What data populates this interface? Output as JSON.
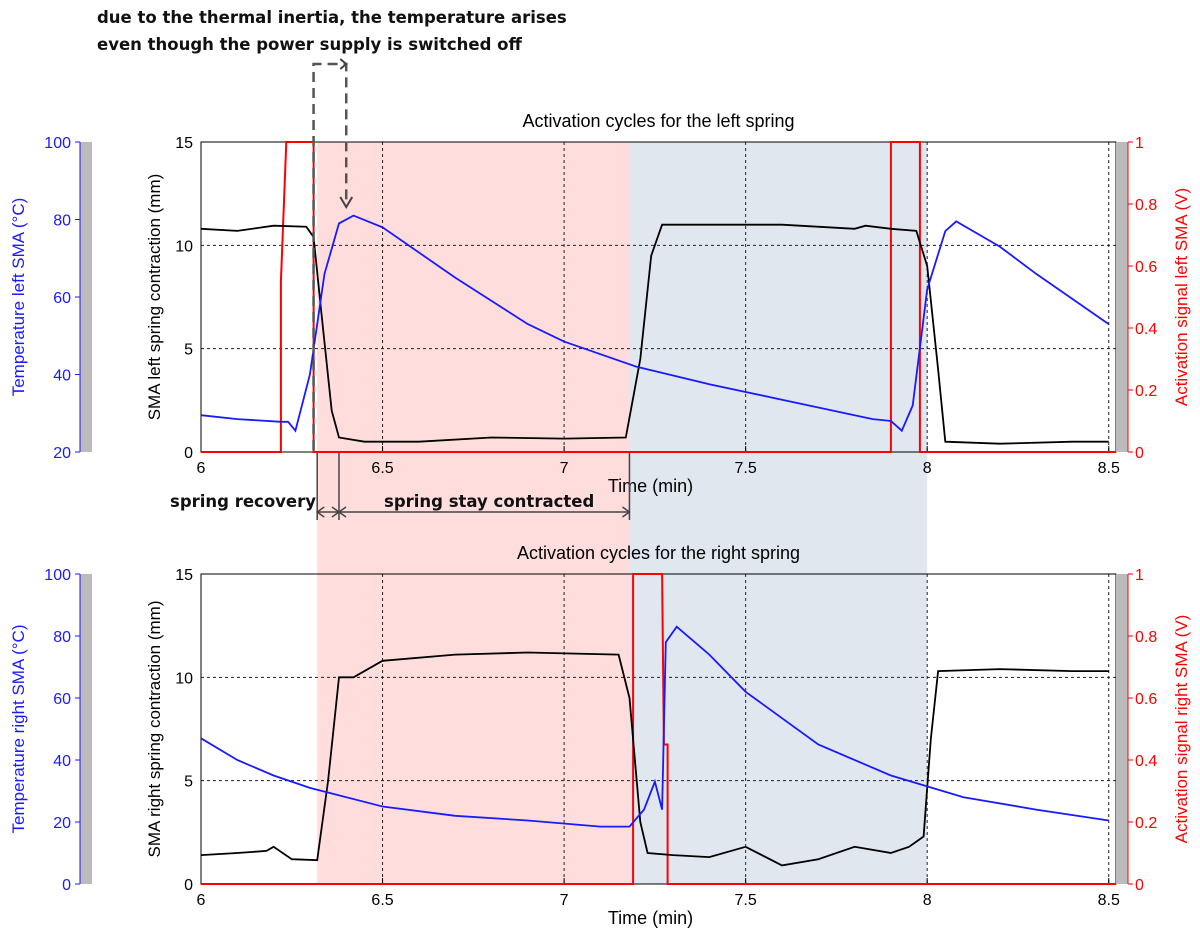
{
  "annotations": {
    "inertia_line1": "due to the thermal inertia, the temperature arises",
    "inertia_line2": "even though the power supply is switched off",
    "spring_recovery": "spring recovery",
    "spring_stay": "spring stay contracted"
  },
  "colors": {
    "temperature": "#1a1aff",
    "contraction": "#000000",
    "activation": "#ff0000",
    "heating_band": "#ffdddd",
    "cooling_band": "#e1e7ef",
    "axis_bar": "#bbbbbb"
  },
  "shaded_regions": [
    {
      "name": "contracted-phase",
      "x": [
        6.32,
        7.18
      ],
      "color": "#ffdddd"
    },
    {
      "name": "cooling-phase",
      "x": [
        7.18,
        8.0
      ],
      "color": "#e1e7ef"
    }
  ],
  "chart_data": [
    {
      "type": "line",
      "title": "Activation cycles for the left spring",
      "xlabel": "Time (min)",
      "ylabel": "SMA left spring contraction (mm)",
      "y2label": "Activation signal left SMA (V)",
      "y3label": "Temperature left SMA (°C)",
      "xlim": [
        6,
        8.52
      ],
      "ylim": [
        0,
        15
      ],
      "y2lim": [
        0,
        1
      ],
      "y3lim": [
        20,
        100
      ],
      "xticks": [
        "6",
        "6.5",
        "7",
        "7.5",
        "8",
        "8.5"
      ],
      "yticks": [
        "0",
        "5",
        "10",
        "15"
      ],
      "y2ticks": [
        "0",
        "0.2",
        "0.4",
        "0.6",
        "0.8",
        "1"
      ],
      "y3ticks": [
        "20",
        "40",
        "60",
        "80",
        "100"
      ],
      "grid": true,
      "contraction": [
        [
          6,
          10.8
        ],
        [
          6.1,
          10.7
        ],
        [
          6.2,
          10.95
        ],
        [
          6.29,
          10.9
        ],
        [
          6.31,
          10.4
        ],
        [
          6.33,
          7.0
        ],
        [
          6.36,
          2.0
        ],
        [
          6.38,
          0.7
        ],
        [
          6.45,
          0.5
        ],
        [
          6.6,
          0.5
        ],
        [
          6.8,
          0.7
        ],
        [
          7.0,
          0.65
        ],
        [
          7.17,
          0.7
        ],
        [
          7.21,
          4.5
        ],
        [
          7.24,
          9.5
        ],
        [
          7.27,
          11.0
        ],
        [
          7.4,
          11.0
        ],
        [
          7.6,
          11.0
        ],
        [
          7.8,
          10.8
        ],
        [
          7.83,
          10.95
        ],
        [
          7.9,
          10.8
        ],
        [
          7.97,
          10.7
        ],
        [
          8.0,
          9.0
        ],
        [
          8.03,
          4.0
        ],
        [
          8.05,
          0.5
        ],
        [
          8.2,
          0.4
        ],
        [
          8.4,
          0.5
        ],
        [
          8.5,
          0.5
        ]
      ],
      "temperature": [
        [
          6,
          29.5
        ],
        [
          6.1,
          28.5
        ],
        [
          6.22,
          27.8
        ],
        [
          6.24,
          27.8
        ],
        [
          6.26,
          25.5
        ],
        [
          6.3,
          40
        ],
        [
          6.34,
          66
        ],
        [
          6.38,
          79
        ],
        [
          6.42,
          81
        ],
        [
          6.5,
          78
        ],
        [
          6.7,
          65
        ],
        [
          6.9,
          53
        ],
        [
          7.0,
          48.5
        ],
        [
          7.2,
          42
        ],
        [
          7.4,
          37.5
        ],
        [
          7.6,
          33.5
        ],
        [
          7.85,
          28.5
        ],
        [
          7.9,
          28
        ],
        [
          7.93,
          25.5
        ],
        [
          7.96,
          32
        ],
        [
          8.0,
          62
        ],
        [
          8.05,
          77
        ],
        [
          8.08,
          79.5
        ],
        [
          8.2,
          73
        ],
        [
          8.3,
          66
        ],
        [
          8.5,
          53
        ]
      ],
      "activation": [
        [
          6,
          0
        ],
        [
          6.22,
          0
        ],
        [
          6.22,
          0.55
        ],
        [
          6.235,
          1
        ],
        [
          6.31,
          1
        ],
        [
          6.31,
          0
        ],
        [
          7.9,
          0
        ],
        [
          7.9,
          1
        ],
        [
          7.98,
          1
        ],
        [
          7.98,
          0
        ],
        [
          8.52,
          0
        ]
      ]
    },
    {
      "type": "line",
      "title": "Activation cycles for the right spring",
      "xlabel": "Time (min)",
      "ylabel": "SMA right spring contraction (mm)",
      "y2label": "Activation signal right SMA (V)",
      "y3label": "Temperature right SMA (°C)",
      "xlim": [
        6,
        8.52
      ],
      "ylim": [
        0,
        15
      ],
      "y2lim": [
        0,
        1
      ],
      "y3lim": [
        0,
        100
      ],
      "xticks": [
        "6",
        "6.5",
        "7",
        "7.5",
        "8",
        "8.5"
      ],
      "yticks": [
        "0",
        "5",
        "10",
        "15"
      ],
      "y2ticks": [
        "0",
        "0.2",
        "0.4",
        "0.6",
        "0.8",
        "1"
      ],
      "y3ticks": [
        "0",
        "20",
        "40",
        "60",
        "80",
        "100"
      ],
      "grid": true,
      "contraction": [
        [
          6,
          1.4
        ],
        [
          6.1,
          1.5
        ],
        [
          6.18,
          1.6
        ],
        [
          6.2,
          1.8
        ],
        [
          6.25,
          1.2
        ],
        [
          6.32,
          1.15
        ],
        [
          6.35,
          5.0
        ],
        [
          6.38,
          10.0
        ],
        [
          6.42,
          10.0
        ],
        [
          6.5,
          10.8
        ],
        [
          6.7,
          11.1
        ],
        [
          6.9,
          11.2
        ],
        [
          7.15,
          11.1
        ],
        [
          7.18,
          9.0
        ],
        [
          7.21,
          3.0
        ],
        [
          7.23,
          1.5
        ],
        [
          7.3,
          1.4
        ],
        [
          7.4,
          1.3
        ],
        [
          7.5,
          1.8
        ],
        [
          7.6,
          0.9
        ],
        [
          7.7,
          1.2
        ],
        [
          7.8,
          1.8
        ],
        [
          7.9,
          1.5
        ],
        [
          7.95,
          1.8
        ],
        [
          7.99,
          2.3
        ],
        [
          8.01,
          7.0
        ],
        [
          8.03,
          10.3
        ],
        [
          8.2,
          10.4
        ],
        [
          8.4,
          10.3
        ],
        [
          8.5,
          10.3
        ]
      ],
      "temperature": [
        [
          6,
          47
        ],
        [
          6.1,
          40
        ],
        [
          6.2,
          35
        ],
        [
          6.3,
          31
        ],
        [
          6.5,
          25
        ],
        [
          6.7,
          22
        ],
        [
          6.9,
          20.5
        ],
        [
          7.1,
          18.5
        ],
        [
          7.18,
          18.5
        ],
        [
          7.22,
          24
        ],
        [
          7.25,
          33
        ],
        [
          7.27,
          24
        ],
        [
          7.28,
          78
        ],
        [
          7.31,
          83
        ],
        [
          7.4,
          74
        ],
        [
          7.5,
          62
        ],
        [
          7.7,
          45
        ],
        [
          7.9,
          35
        ],
        [
          8.1,
          28
        ],
        [
          8.3,
          24
        ],
        [
          8.5,
          20.5
        ]
      ],
      "activation": [
        [
          6,
          0
        ],
        [
          7.19,
          0
        ],
        [
          7.19,
          1
        ],
        [
          7.27,
          1
        ],
        [
          7.275,
          0.45
        ],
        [
          7.285,
          0.45
        ],
        [
          7.285,
          0
        ],
        [
          8.52,
          0
        ]
      ]
    }
  ]
}
